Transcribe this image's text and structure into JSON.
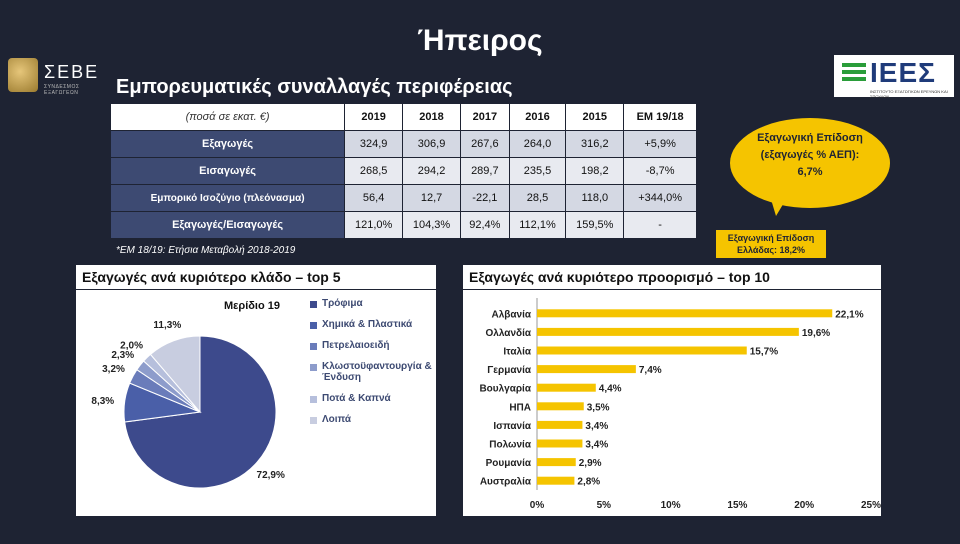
{
  "title": "Ήπειρος",
  "logos": {
    "seve": "ΣΕΒΕ",
    "seve_sub": "ΣΥΝΔΕΣΜΟΣ ΕΞΑΓΩΓΕΩΝ",
    "iees": "ΙΕΕΣ",
    "iees_sub": "ΙΝΣΤΙΤΟΥΤΟ ΕΞΑΓΩΓΙΚΩΝ ΕΡΕΥΝΩΝ ΚΑΙ ΣΠΟΥΔΩΝ"
  },
  "subtitle": "Εμπορευματικές συναλλαγές περιφέρειας",
  "table": {
    "corner": "(ποσά σε εκατ. €)",
    "headers": [
      "2019",
      "2018",
      "2017",
      "2016",
      "2015",
      "ΕΜ 19/18"
    ],
    "rows": [
      {
        "label": "Εξαγωγές",
        "values": [
          "324,9",
          "306,9",
          "267,6",
          "264,0",
          "316,2",
          "+5,9%"
        ]
      },
      {
        "label": "Εισαγωγές",
        "values": [
          "268,5",
          "294,2",
          "289,7",
          "235,5",
          "198,2",
          "-8,7%"
        ]
      },
      {
        "label": "Εμπορικό Ισοζύγιο (πλεόνασμα)",
        "values": [
          "56,4",
          "12,7",
          "-22,1",
          "28,5",
          "118,0",
          "+344,0%"
        ]
      },
      {
        "label": "Εξαγωγές/Εισαγωγές",
        "values": [
          "121,0%",
          "104,3%",
          "92,4%",
          "112,1%",
          "159,5%",
          "-"
        ]
      }
    ]
  },
  "footnote": "*ΕΜ 18/19: Ετήσια Μεταβολή 2018-2019",
  "bubble": {
    "line1": "Εξαγωγική Επίδοση",
    "line2": "(εξαγωγές % ΑΕΠ):",
    "line3": "6,7%"
  },
  "greece": {
    "line1": "Εξαγωγική Επίδοση",
    "line2": "Ελλάδας: 18,2%"
  },
  "left_panel_title": "Εξαγωγές ανά κυριότερο κλάδο – top 5",
  "right_panel_title": "Εξαγωγές ανά κυριότερο προορισμό – top 10",
  "colors": {
    "pie": [
      "#3d4a8c",
      "#4a5fa8",
      "#6a7cba",
      "#8d9ccb",
      "#b6bfdc",
      "#c8cde0"
    ],
    "bar": "#f5c400",
    "navy": "#3d4a72"
  },
  "chart_data": [
    {
      "type": "pie",
      "title": "Μερίδιο 19",
      "categories": [
        "Τρόφιμα",
        "Χημικά & Πλαστικά",
        "Πετρελαιοειδή",
        "Κλωστοϋφαντουργία & Ένδυση",
        "Ποτά & Καπνά",
        "Λοιπά"
      ],
      "values": [
        72.9,
        8.3,
        3.2,
        2.3,
        2.0,
        11.3
      ],
      "labels": [
        "72,9%",
        "8,3%",
        "3,2%",
        "2,3%",
        "2,0%",
        "11,3%"
      ],
      "legend": "right"
    },
    {
      "type": "bar",
      "orientation": "horizontal",
      "categories": [
        "Αλβανία",
        "Ολλανδία",
        "Ιταλία",
        "Γερμανία",
        "Βουλγαρία",
        "ΗΠΑ",
        "Ισπανία",
        "Πολωνία",
        "Ρουμανία",
        "Αυστραλία"
      ],
      "values": [
        22.1,
        19.6,
        15.7,
        7.4,
        4.4,
        3.5,
        3.4,
        3.4,
        2.9,
        2.8
      ],
      "labels": [
        "22,1%",
        "19,6%",
        "15,7%",
        "7,4%",
        "4,4%",
        "3,5%",
        "3,4%",
        "3,4%",
        "2,9%",
        "2,8%"
      ],
      "xlim": [
        0,
        25
      ],
      "xticks": [
        "0%",
        "5%",
        "10%",
        "15%",
        "20%",
        "25%"
      ]
    }
  ]
}
